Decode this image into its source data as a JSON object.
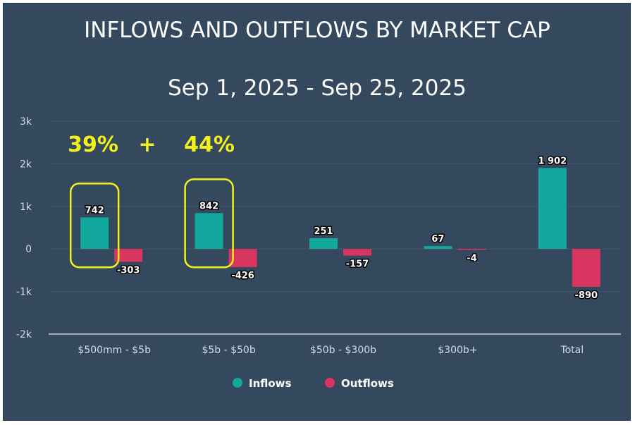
{
  "chart_data": {
    "type": "bar",
    "title": "INFLOWS AND OUTFLOWS BY MARKET CAP",
    "subtitle": "Sep 1, 2025 - Sep 25, 2025",
    "categories": [
      "$500mm - $5b",
      "$5b - $50b",
      "$50b - $300b",
      "$300b+",
      "Total"
    ],
    "series": [
      {
        "name": "Inflows",
        "color": "#13a89e",
        "values": [
          742,
          842,
          251,
          67,
          1902
        ]
      },
      {
        "name": "Outflows",
        "color": "#d83560",
        "values": [
          -303,
          -426,
          -157,
          -4,
          -890
        ]
      }
    ],
    "data_labels": {
      "Inflows": [
        "742",
        "842",
        "251",
        "67",
        "1 902"
      ],
      "Outflows": [
        "-303",
        "-426",
        "-157",
        "-4",
        "-890"
      ]
    },
    "ylim": [
      -2000,
      3000
    ],
    "yticks": [
      3000,
      2000,
      1000,
      0,
      -1000,
      -2000
    ],
    "ytick_labels": [
      "3k",
      "2k",
      "1k",
      "0",
      "-1k",
      "-2k"
    ],
    "grid": true,
    "legend_position": "bottom-center",
    "annotations": {
      "pct_left": "39%",
      "plus": "+",
      "pct_right": "44%",
      "highlighted_categories": [
        0,
        1
      ],
      "highlight_color": "#f2f21a"
    }
  }
}
